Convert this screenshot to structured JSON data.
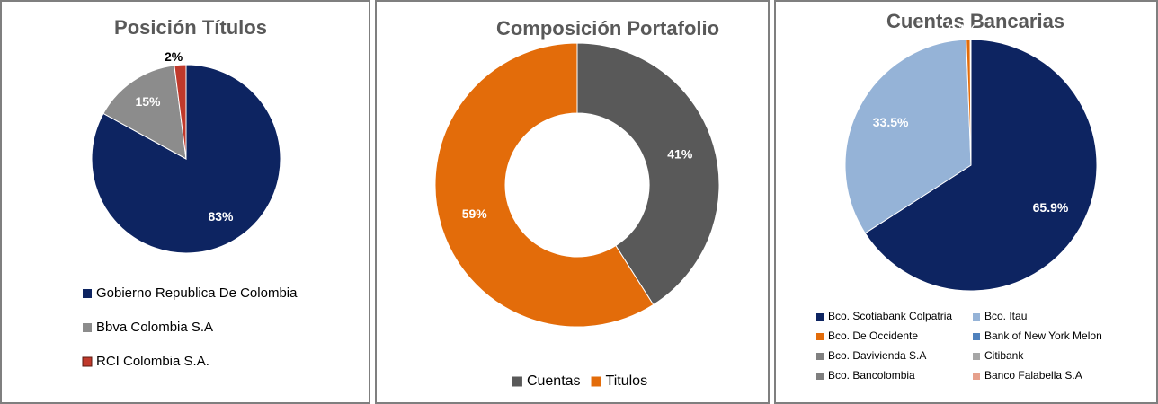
{
  "chart_data": [
    {
      "type": "pie",
      "title": "Posición Títulos",
      "categories": [
        "Gobierno Republica De Colombia",
        "Bbva Colombia S.A",
        "RCI Colombia S.A."
      ],
      "values": [
        83,
        15,
        2
      ],
      "value_labels": [
        "83%",
        "15%",
        "2%"
      ],
      "colors": [
        "#0d2461",
        "#8c8c8c",
        "#c0392b"
      ],
      "legend": "bottom"
    },
    {
      "type": "donut",
      "title": "Composición Portafolio",
      "categories": [
        "Cuentas",
        "Titulos"
      ],
      "values": [
        41,
        59
      ],
      "value_labels": [
        "41%",
        "59%"
      ],
      "colors": [
        "#595959",
        "#e36c0a"
      ],
      "legend": "bottom"
    },
    {
      "type": "pie",
      "title": "Cuentas Bancarias",
      "categories": [
        "Bco. Scotiabank Colpatria",
        "Bco. Itau",
        "Bco. De Occidente",
        "Bank of New York Melon",
        "Bco. Davivienda S.A",
        "Citibank",
        "Bco. Bancolombia",
        "Banco Falabella S.A"
      ],
      "values": [
        65.9,
        33.5,
        0.5,
        0,
        0.1,
        0,
        0,
        0
      ],
      "value_labels": [
        "65.9%",
        "33.5%",
        null,
        null,
        "0.1%",
        null,
        null,
        null
      ],
      "colors": [
        "#0d2461",
        "#95b3d7",
        "#e36c0a",
        "#4f81bd",
        "#808080",
        "#a6a6a6",
        "#7f7f7f",
        "#e6a08c"
      ],
      "legend": "bottom"
    }
  ]
}
